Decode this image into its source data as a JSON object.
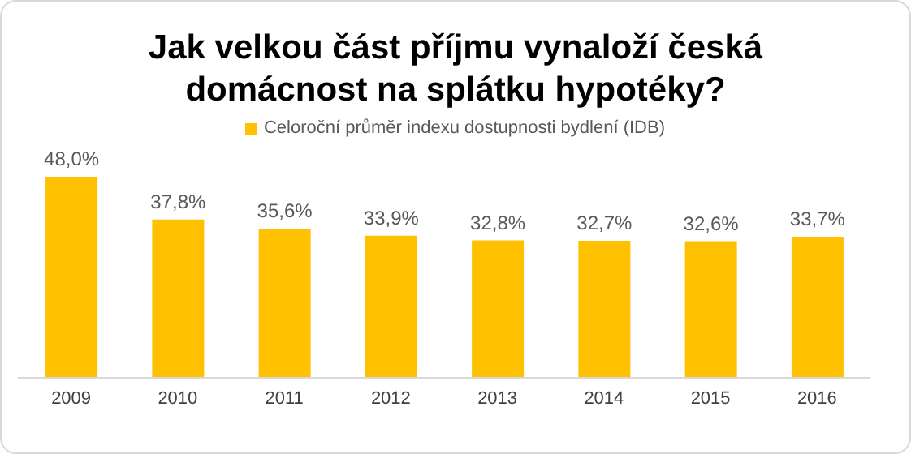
{
  "chart_data": {
    "type": "bar",
    "title": "Jak velkou část příjmu vynaloží česká domácnost na splátku hypotéky?",
    "categories": [
      "2009",
      "2010",
      "2011",
      "2012",
      "2013",
      "2014",
      "2015",
      "2016"
    ],
    "series": [
      {
        "name": "Celoroční průměr indexu dostupnosti bydlení (IDB)",
        "color": "#ffc000",
        "values": [
          48.0,
          37.8,
          35.6,
          33.9,
          32.8,
          32.7,
          32.6,
          33.7
        ],
        "value_labels": [
          "48,0%",
          "37,8%",
          "35,6%",
          "33,9%",
          "32,8%",
          "32,7%",
          "32,6%",
          "33,7%"
        ]
      }
    ],
    "legend": "top"
  }
}
